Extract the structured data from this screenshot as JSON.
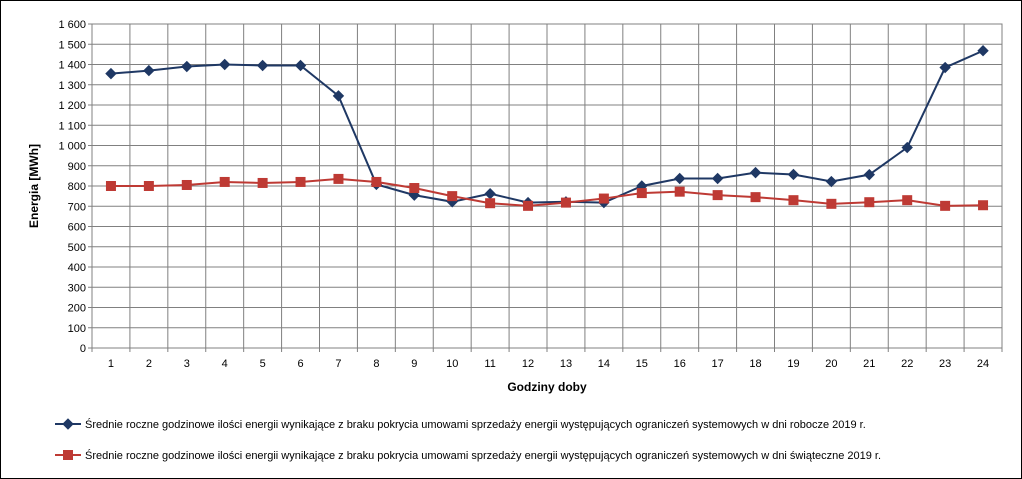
{
  "chart_data": {
    "type": "line",
    "title": "",
    "xlabel": "Godziny doby",
    "ylabel": "Energia  [MWh]",
    "ylim": [
      0,
      1600
    ],
    "ytick_step": 100,
    "ytick_labels": [
      "0",
      "100",
      "200",
      "300",
      "400",
      "500",
      "600",
      "700",
      "800",
      "900",
      "1 000",
      "1 100",
      "1 200",
      "1 300",
      "1 400",
      "1 500",
      "1 600"
    ],
    "categories": [
      "1",
      "2",
      "3",
      "4",
      "5",
      "6",
      "7",
      "8",
      "9",
      "10",
      "11",
      "12",
      "13",
      "14",
      "15",
      "16",
      "17",
      "18",
      "19",
      "20",
      "21",
      "22",
      "23",
      "24"
    ],
    "grid": true,
    "legend_position": "bottom",
    "series": [
      {
        "name": "Średnie roczne godzinowe ilości energii wynikające z braku pokrycia umowami sprzedaży energii występujących ograniczeń systemowych w dni robocze 2019 r.",
        "color": "#1f3864",
        "marker": "diamond",
        "values": [
          1355,
          1370,
          1390,
          1400,
          1395,
          1395,
          1245,
          808,
          755,
          722,
          762,
          718,
          722,
          718,
          800,
          837,
          837,
          866,
          857,
          822,
          856,
          990,
          1385,
          1468
        ]
      },
      {
        "name": "Średnie roczne godzinowe ilości energii wynikające z braku pokrycia umowami sprzedaży energii występujących ograniczeń systemowych w dni świąteczne 2019 r.",
        "color": "#be3a34",
        "marker": "square",
        "values": [
          800,
          800,
          805,
          820,
          815,
          820,
          835,
          820,
          790,
          750,
          715,
          702,
          718,
          738,
          765,
          772,
          755,
          745,
          730,
          712,
          720,
          730,
          702,
          705
        ]
      }
    ]
  }
}
